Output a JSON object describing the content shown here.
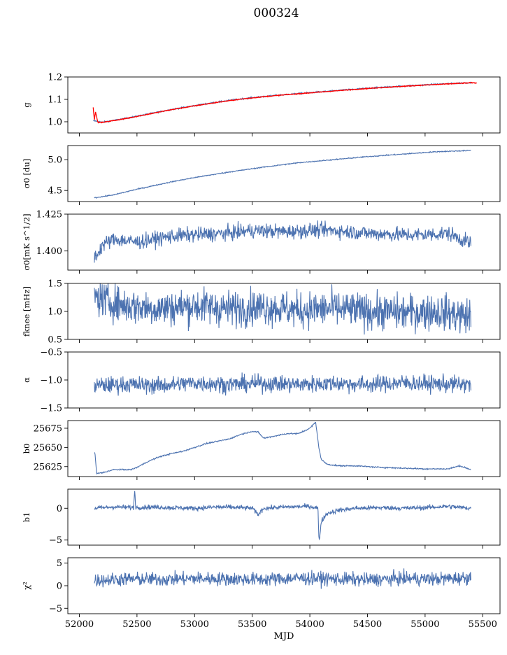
{
  "figure": {
    "title": "000324"
  },
  "chart_data": [
    {
      "id": "g",
      "type": "line",
      "ylabel": "g",
      "xlim": [
        51900,
        55650
      ],
      "ylim": [
        0.95,
        1.2
      ],
      "yticks": [
        1.0,
        1.1,
        1.2
      ],
      "ytick_labels": [
        "1.0",
        "1.1",
        "1.2"
      ],
      "xticks": [
        52000,
        52500,
        53000,
        53500,
        54000,
        54500,
        55000,
        55500
      ],
      "xtick_labels": [],
      "grid": false,
      "series": [
        {
          "color": "#4c72b0",
          "x": [
            52120,
            52200,
            52400,
            52600,
            52800,
            53000,
            53200,
            53400,
            53600,
            53800,
            54000,
            54200,
            54400,
            54600,
            54800,
            55000,
            55200,
            55400
          ],
          "y": [
            1.005,
            0.998,
            1.015,
            1.035,
            1.055,
            1.072,
            1.088,
            1.102,
            1.113,
            1.122,
            1.13,
            1.138,
            1.146,
            1.153,
            1.159,
            1.165,
            1.17,
            1.175
          ]
        },
        {
          "color": "#ff0000",
          "x": [
            52120,
            52130,
            52140,
            52160,
            52200,
            52400,
            52600,
            52800,
            53000,
            53200,
            53400,
            53600,
            53800,
            54000,
            54200,
            54400,
            54600,
            54800,
            55000,
            55200,
            55400,
            55450
          ],
          "y": [
            1.065,
            1.01,
            1.045,
            0.998,
            0.997,
            1.014,
            1.034,
            1.054,
            1.071,
            1.087,
            1.101,
            1.112,
            1.121,
            1.129,
            1.137,
            1.145,
            1.152,
            1.158,
            1.164,
            1.169,
            1.174,
            1.173
          ]
        }
      ]
    },
    {
      "id": "sigma0-du",
      "type": "line",
      "ylabel": "σ0 [du]",
      "xlim": [
        51900,
        55650
      ],
      "ylim": [
        4.32,
        5.23
      ],
      "yticks": [
        4.5,
        5.0
      ],
      "ytick_labels": [
        "4.5",
        "5.0"
      ],
      "xticks": [
        52000,
        52500,
        53000,
        53500,
        54000,
        54500,
        55000,
        55500
      ],
      "xtick_labels": [],
      "grid": false,
      "series": [
        {
          "color": "#4c72b0",
          "x": [
            52130,
            52300,
            52500,
            52800,
            53000,
            53300,
            53600,
            53900,
            54200,
            54500,
            54800,
            55100,
            55400
          ],
          "y": [
            4.38,
            4.43,
            4.52,
            4.64,
            4.71,
            4.8,
            4.88,
            4.95,
            5.0,
            5.05,
            5.09,
            5.13,
            5.15
          ]
        }
      ]
    },
    {
      "id": "sigma0-mks",
      "type": "line",
      "ylabel": "σ0[mK s^1/2]",
      "xlim": [
        51900,
        55650
      ],
      "ylim": [
        1.387,
        1.425
      ],
      "yticks": [
        1.4,
        1.425
      ],
      "ytick_labels": [
        "1.400",
        "1.425"
      ],
      "xticks": [
        52000,
        52500,
        53000,
        53500,
        54000,
        54500,
        55000,
        55500
      ],
      "xtick_labels": [],
      "grid": false,
      "series": [
        {
          "color": "#4c72b0",
          "x": [
            52130,
            52160,
            52200,
            52300,
            52500,
            52800,
            53000,
            53300,
            53500,
            53800,
            54000,
            54200,
            54500,
            54800,
            55000,
            55200,
            55400
          ],
          "y": [
            1.396,
            1.398,
            1.404,
            1.408,
            1.406,
            1.41,
            1.411,
            1.412,
            1.414,
            1.413,
            1.414,
            1.414,
            1.412,
            1.411,
            1.411,
            1.412,
            1.405
          ]
        }
      ]
    },
    {
      "id": "fknee",
      "type": "line",
      "ylabel": "fknee [mHz]",
      "xlim": [
        51900,
        55650
      ],
      "ylim": [
        0.5,
        1.5
      ],
      "yticks": [
        0.5,
        1.0,
        1.5
      ],
      "ytick_labels": [
        "0.5",
        "1.0",
        "1.5"
      ],
      "xticks": [
        52000,
        52500,
        53000,
        53500,
        54000,
        54500,
        55000,
        55500
      ],
      "xtick_labels": [],
      "grid": false,
      "series": [
        {
          "color": "#4c72b0",
          "x": [
            52130,
            52400,
            52700,
            53000,
            53300,
            53600,
            53900,
            54200,
            54500,
            54800,
            55100,
            55400
          ],
          "y": [
            1.25,
            1.1,
            1.05,
            1.1,
            1.05,
            1.08,
            1.02,
            1.05,
            1.0,
            0.98,
            1.0,
            0.9
          ]
        }
      ]
    },
    {
      "id": "alpha",
      "type": "line",
      "ylabel": "α",
      "xlim": [
        51900,
        55650
      ],
      "ylim": [
        -1.5,
        -0.5
      ],
      "yticks": [
        -1.5,
        -1.0,
        -0.5
      ],
      "ytick_labels": [
        "−1.5",
        "−1.0",
        "−0.5"
      ],
      "xticks": [
        52000,
        52500,
        53000,
        53500,
        54000,
        54500,
        55000,
        55500
      ],
      "xtick_labels": [],
      "grid": false,
      "series": [
        {
          "color": "#4c72b0",
          "x": [
            52130,
            52400,
            52700,
            53000,
            53300,
            53600,
            53900,
            54200,
            54500,
            54800,
            55100,
            55400
          ],
          "y": [
            -1.1,
            -1.08,
            -1.1,
            -1.05,
            -1.08,
            -1.06,
            -1.08,
            -1.06,
            -1.08,
            -1.05,
            -1.07,
            -1.08
          ]
        }
      ]
    },
    {
      "id": "b0",
      "type": "line",
      "ylabel": "b0",
      "xlim": [
        51900,
        55650
      ],
      "ylim": [
        25612,
        25685
      ],
      "yticks": [
        25625,
        25650,
        25675
      ],
      "ytick_labels": [
        "25625",
        "25650",
        "25675"
      ],
      "xticks": [
        52000,
        52500,
        53000,
        53500,
        54000,
        54500,
        55000,
        55500
      ],
      "xtick_labels": [],
      "grid": false,
      "series": [
        {
          "color": "#4c72b0",
          "x": [
            52130,
            52135,
            52150,
            52200,
            52300,
            52450,
            52500,
            52600,
            52700,
            52800,
            52900,
            53000,
            53100,
            53200,
            53300,
            53400,
            53500,
            53550,
            53600,
            53700,
            53800,
            53900,
            54000,
            54050,
            54070,
            54080,
            54100,
            54150,
            54250,
            54400,
            54600,
            54800,
            55000,
            55200,
            55300,
            55400
          ],
          "y": [
            25643,
            25643,
            25616,
            25617,
            25621,
            25621,
            25624,
            25632,
            25638,
            25642,
            25645,
            25650,
            25655,
            25658,
            25661,
            25667,
            25671,
            25670,
            25662,
            25665,
            25668,
            25668,
            25675,
            25683,
            25660,
            25648,
            25634,
            25628,
            25626,
            25626,
            25624,
            25623,
            25622,
            25622,
            25626,
            25621
          ]
        }
      ]
    },
    {
      "id": "b1",
      "type": "line",
      "ylabel": "b1",
      "xlim": [
        51900,
        55650
      ],
      "ylim": [
        -5.8,
        3.0
      ],
      "yticks": [
        -5,
        0
      ],
      "ytick_labels": [
        "−5",
        "0"
      ],
      "xticks": [
        52000,
        52500,
        53000,
        53500,
        54000,
        54500,
        55000,
        55500
      ],
      "xtick_labels": [],
      "grid": false,
      "series": [
        {
          "color": "#4c72b0",
          "x": [
            52130,
            52300,
            52470,
            52480,
            52490,
            52600,
            52800,
            53000,
            53200,
            53400,
            53500,
            53550,
            53600,
            53800,
            54000,
            54070,
            54080,
            54100,
            54150,
            54250,
            54400,
            54600,
            54800,
            55000,
            55200,
            55400
          ],
          "y": [
            0.0,
            0.2,
            0.1,
            2.8,
            0.1,
            0.2,
            0.1,
            0.0,
            0.2,
            0.1,
            0.0,
            -1.0,
            0.0,
            0.2,
            0.3,
            0.0,
            -5.3,
            -2.0,
            -0.8,
            -0.3,
            0.0,
            0.1,
            0.0,
            0.1,
            0.3,
            0.0
          ]
        }
      ]
    },
    {
      "id": "chi2",
      "type": "line",
      "ylabel": "χ²",
      "xlabel": "MJD",
      "xlim": [
        51900,
        55650
      ],
      "ylim": [
        -6.2,
        6.2
      ],
      "yticks": [
        -5,
        0,
        5
      ],
      "ytick_labels": [
        "−5",
        "0",
        "5"
      ],
      "xticks": [
        52000,
        52500,
        53000,
        53500,
        54000,
        54500,
        55000,
        55500
      ],
      "xtick_labels": [
        "52000",
        "52500",
        "53000",
        "53500",
        "54000",
        "54500",
        "55000",
        "55500"
      ],
      "grid": false,
      "series": [
        {
          "color": "#4c72b0",
          "x": [
            52130,
            52400,
            52700,
            53000,
            53300,
            53600,
            53900,
            54200,
            54500,
            54800,
            55100,
            55400
          ],
          "y": [
            1.2,
            1.5,
            1.4,
            1.6,
            1.5,
            1.4,
            1.7,
            1.5,
            1.3,
            1.6,
            1.5,
            1.8
          ]
        }
      ]
    }
  ]
}
